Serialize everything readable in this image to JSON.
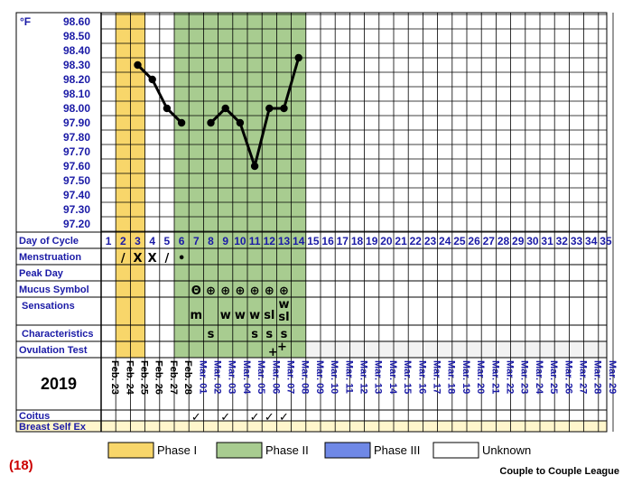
{
  "chart_data": {
    "type": "line",
    "unit": "°F",
    "ylim": [
      97.2,
      98.6
    ],
    "y_ticks": [
      "98.60",
      "98.50",
      "98.40",
      "98.30",
      "98.20",
      "98.10",
      "98.00",
      "97.90",
      "97.80",
      "97.70",
      "97.60",
      "97.50",
      "97.40",
      "97.30",
      "97.20"
    ],
    "days": 35,
    "temperatures": [
      {
        "day": 3,
        "value": 98.3
      },
      {
        "day": 4,
        "value": 98.2
      },
      {
        "day": 5,
        "value": 98.0
      },
      {
        "day": 6,
        "value": 97.9
      },
      {
        "day": 8,
        "value": 97.9
      },
      {
        "day": 9,
        "value": 98.0
      },
      {
        "day": 10,
        "value": 97.9
      },
      {
        "day": 11,
        "value": 97.6
      },
      {
        "day": 12,
        "value": 98.0
      },
      {
        "day": 13,
        "value": 98.0
      },
      {
        "day": 14,
        "value": 98.35
      }
    ],
    "phase1_days": [
      2,
      3
    ],
    "phase2_days": [
      6,
      14
    ],
    "dates": [
      "Feb. 23",
      "Feb. 24",
      "Feb. 25",
      "Feb. 26",
      "Feb. 27",
      "Feb. 28",
      "Mar. 01",
      "Mar. 02",
      "Mar. 03",
      "Mar. 04",
      "Mar. 05",
      "Mar. 06",
      "Mar. 07",
      "Mar. 08",
      "Mar. 09",
      "Mar. 10",
      "Mar. 11",
      "Mar. 12",
      "Mar. 13",
      "Mar. 14",
      "Mar. 15",
      "Mar. 16",
      "Mar. 17",
      "Mar. 18",
      "Mar. 19",
      "Mar. 20",
      "Mar. 21",
      "Mar. 22",
      "Mar. 23",
      "Mar. 24",
      "Mar. 25",
      "Mar. 26",
      "Mar. 27",
      "Mar. 28",
      "Mar. 29"
    ],
    "date_colors": {
      "black": [
        1,
        6
      ],
      "blue": [
        7,
        35
      ]
    }
  },
  "colors": {
    "phase1": "#f8d66a",
    "phase2": "#a8cc90",
    "phase3": "#6f88e6",
    "unknown": "#ffffff",
    "label_blue": "#1a1aa6",
    "cycle_red": "#cc0000"
  },
  "rows": {
    "day_of_cycle": "Day of Cycle",
    "menstruation": "Menstruation",
    "peak_day": "Peak Day",
    "mucus_symbol": "Mucus Symbol",
    "sensations": "Sensations",
    "characteristics": "Characteristics",
    "ovulation_test": "Ovulation Test",
    "coitus": "Coitus",
    "breast_self_ex": "Breast Self Ex"
  },
  "menstruation": [
    {
      "day": 2,
      "text": "/"
    },
    {
      "day": 3,
      "text": "X"
    },
    {
      "day": 4,
      "text": "X"
    },
    {
      "day": 5,
      "text": "/"
    },
    {
      "day": 6,
      "text": "•"
    }
  ],
  "mucus_symbols": [
    {
      "day": 7,
      "text": "Θ"
    },
    {
      "day": 8,
      "text": "⊕"
    },
    {
      "day": 9,
      "text": "⊕"
    },
    {
      "day": 10,
      "text": "⊕"
    },
    {
      "day": 11,
      "text": "⊕"
    },
    {
      "day": 12,
      "text": "⊕"
    },
    {
      "day": 13,
      "text": "⊕"
    }
  ],
  "sensations": [
    {
      "day": 7,
      "text": "m"
    },
    {
      "day": 9,
      "text": "w"
    },
    {
      "day": 10,
      "text": "w"
    },
    {
      "day": 11,
      "text": "w"
    },
    {
      "day": 12,
      "text": "sl"
    },
    {
      "day": 13,
      "text": "w"
    },
    {
      "day": 13,
      "text": "sl"
    }
  ],
  "characteristics": [
    {
      "day": 8,
      "text": "s"
    },
    {
      "day": 11,
      "text": "s"
    },
    {
      "day": 12,
      "text": "s"
    },
    {
      "day": 13,
      "text": "s"
    }
  ],
  "ovulation_test": [
    {
      "day": 12,
      "text": "+"
    },
    {
      "day": 13,
      "text": "+"
    }
  ],
  "coitus_days": [
    7,
    9,
    11,
    12,
    13
  ],
  "coitus_mark": "✓",
  "year": "2019",
  "legend": [
    {
      "label": "Phase I",
      "color": "#f8d66a"
    },
    {
      "label": "Phase II",
      "color": "#a8cc90"
    },
    {
      "label": "Phase III",
      "color": "#6f88e6"
    },
    {
      "label": "Unknown",
      "color": "#ffffff"
    }
  ],
  "cycle_number": "(18)",
  "footer": "Couple to Couple League"
}
